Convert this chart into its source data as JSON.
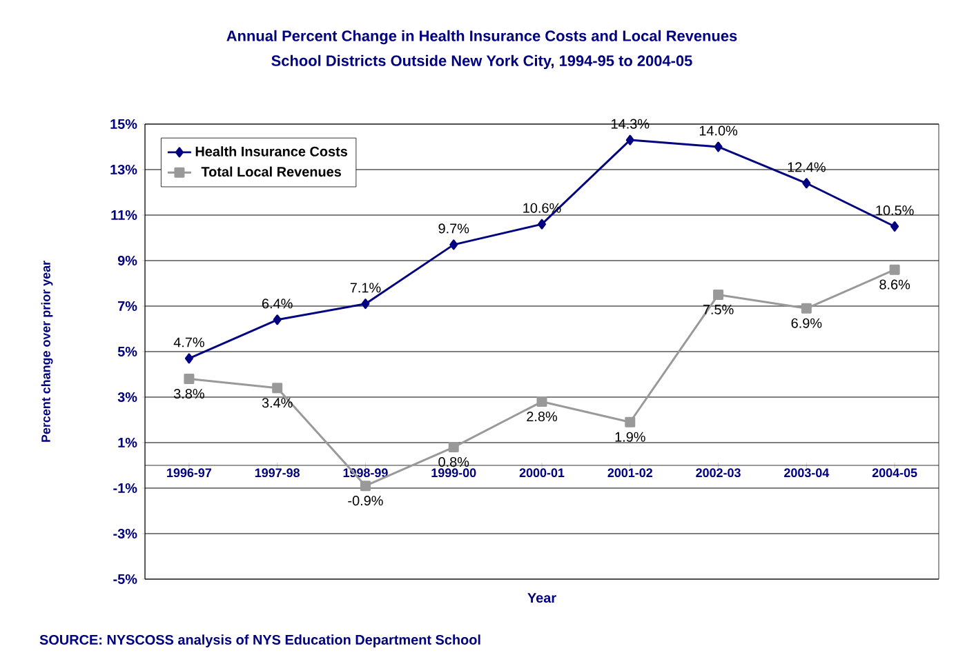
{
  "chart_data": {
    "type": "line",
    "title": "Annual Percent Change in Health Insurance Costs and Local Revenues",
    "subtitle": "School Districts Outside New York City, 1994-95 to 2004-05",
    "xlabel": "Year",
    "ylabel": "Percent change over prior year",
    "categories": [
      "1996-97",
      "1997-98",
      "1998-99",
      "1999-00",
      "2000-01",
      "2001-02",
      "2002-03",
      "2003-04",
      "2004-05"
    ],
    "series": [
      {
        "name": "Health Insurance Costs",
        "color": "#000080",
        "marker": "diamond",
        "values": [
          4.7,
          6.4,
          7.1,
          9.7,
          10.6,
          14.3,
          14.0,
          12.4,
          10.5
        ],
        "value_labels": [
          "4.7%",
          "6.4%",
          "7.1%",
          "9.7%",
          "10.6%",
          "14.3%",
          "14.0%",
          "12.4%",
          "10.5%"
        ]
      },
      {
        "name": "Total Local Revenues",
        "color": "#999999",
        "marker": "square",
        "values": [
          3.8,
          3.4,
          -0.9,
          0.8,
          2.8,
          1.9,
          7.5,
          6.9,
          8.6
        ],
        "value_labels": [
          "3.8%",
          "3.4%",
          "-0.9%",
          "0.8%",
          "2.8%",
          "1.9%",
          "7.5%",
          "6.9%",
          "8.6%"
        ]
      }
    ],
    "ylim": [
      -5,
      15
    ],
    "yticks": [
      {
        "value": -5,
        "label": "-5%"
      },
      {
        "value": -3,
        "label": "-3%"
      },
      {
        "value": -1,
        "label": "-1%"
      },
      {
        "value": 1,
        "label": "1%"
      },
      {
        "value": 3,
        "label": "3%"
      },
      {
        "value": 5,
        "label": "5%"
      },
      {
        "value": 7,
        "label": "7%"
      },
      {
        "value": 9,
        "label": "9%"
      },
      {
        "value": 11,
        "label": "11%"
      },
      {
        "value": 13,
        "label": "13%"
      },
      {
        "value": 15,
        "label": "15%"
      }
    ],
    "grid": "y",
    "legend": "top left",
    "line_style": "solid",
    "annotations": [
      "SOURCE:  NYSCOSS analysis of NYS Education Department School"
    ]
  }
}
